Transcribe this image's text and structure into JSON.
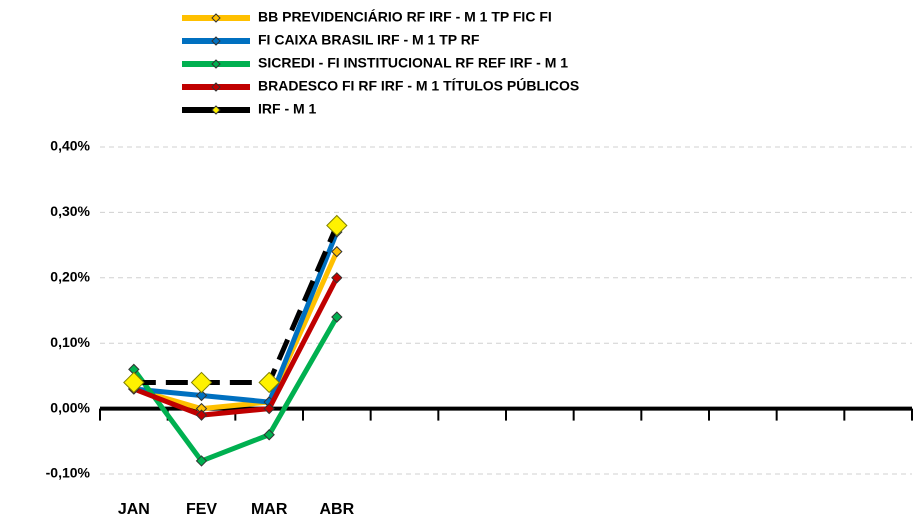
{
  "chart_data": {
    "type": "line",
    "categories": [
      "JAN",
      "FEV",
      "MAR",
      "ABR",
      null,
      null,
      null,
      null,
      null,
      null,
      null,
      null
    ],
    "series": [
      {
        "name": "BB PREVIDENCIÁRIO RF IRF - M 1 TP FIC FI",
        "color": "#FFC000",
        "values": [
          0.03,
          0.0,
          0.01,
          0.24,
          null,
          null,
          null,
          null,
          null,
          null,
          null,
          null
        ]
      },
      {
        "name": "FI CAIXA BRASIL IRF - M 1 TP RF",
        "color": "#0070C0",
        "values": [
          0.03,
          0.02,
          0.01,
          0.27,
          null,
          null,
          null,
          null,
          null,
          null,
          null,
          null
        ]
      },
      {
        "name": "SICREDI - FI INSTITUCIONAL RF REF IRF - M 1",
        "color": "#00B050",
        "values": [
          0.06,
          -0.08,
          -0.04,
          0.14,
          null,
          null,
          null,
          null,
          null,
          null,
          null,
          null
        ]
      },
      {
        "name": "BRADESCO FI RF IRF - M 1 TÍTULOS PÚBLICOS",
        "color": "#C00000",
        "values": [
          0.03,
          -0.01,
          0.0,
          0.2,
          null,
          null,
          null,
          null,
          null,
          null,
          null,
          null
        ]
      },
      {
        "name": "IRF - M 1",
        "color": "#000000",
        "marker_color": "#FFF200",
        "values": [
          0.04,
          0.04,
          0.04,
          0.28,
          null,
          null,
          null,
          null,
          null,
          null,
          null,
          null
        ]
      }
    ],
    "ylim": [
      -0.1,
      0.4
    ],
    "yticks": [
      {
        "value": -0.1,
        "label": "-0,10%"
      },
      {
        "value": 0,
        "label": "0,00%"
      },
      {
        "value": 0.1,
        "label": "0,10%"
      },
      {
        "value": 0.2,
        "label": "0,20%"
      },
      {
        "value": 0.3,
        "label": "0,30%"
      },
      {
        "value": 0.4,
        "label": "0,40%"
      }
    ],
    "grid": true,
    "legend": "top"
  }
}
